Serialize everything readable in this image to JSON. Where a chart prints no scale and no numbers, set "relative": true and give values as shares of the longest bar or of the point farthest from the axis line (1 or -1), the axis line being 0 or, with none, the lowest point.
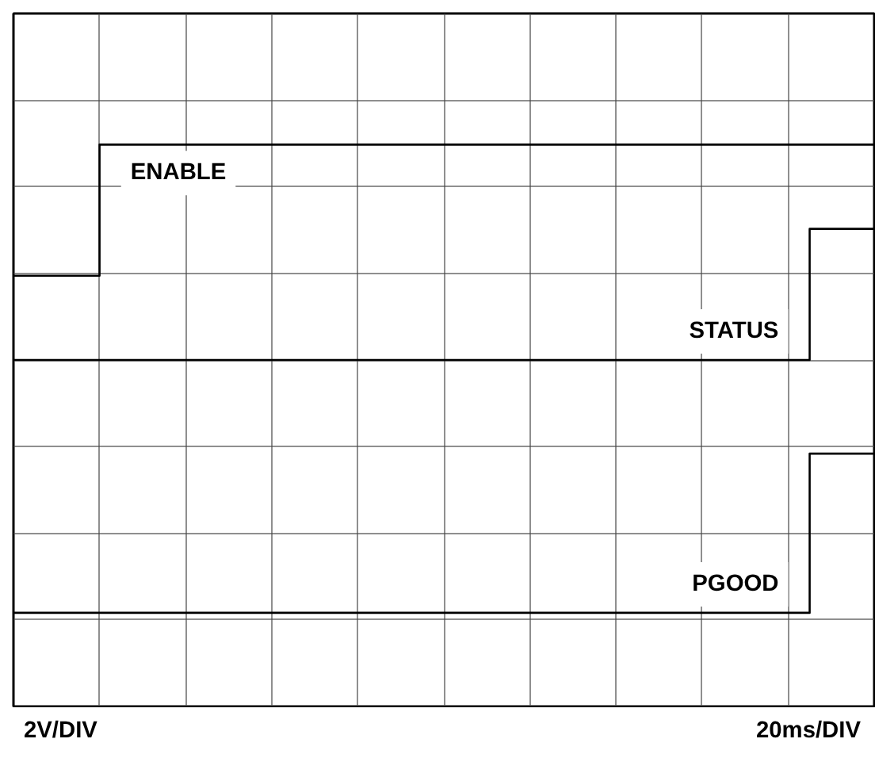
{
  "chart_data": {
    "type": "step",
    "relative": true,
    "grid": true,
    "marker": "none",
    "line_style": "solid",
    "categories": [
      null,
      null,
      null,
      null,
      null,
      null,
      null,
      null,
      null,
      null,
      null,
      null,
      null,
      null,
      null,
      null,
      null,
      null,
      null,
      null,
      null,
      null,
      null,
      null,
      null,
      null,
      null,
      null,
      null,
      null,
      null,
      null,
      null,
      null,
      null,
      null,
      null,
      null,
      null,
      null,
      null
    ],
    "series": [
      {
        "name": "ENABLE",
        "color": "#000000",
        "values": [
          0.72,
          0.72,
          0.72,
          0.72,
          1,
          1,
          1,
          1,
          1,
          1,
          1,
          1,
          1,
          1,
          1,
          1,
          1,
          1,
          1,
          1,
          1,
          1,
          1,
          1,
          1,
          1,
          1,
          1,
          1,
          1,
          1,
          1,
          1,
          1,
          1,
          1,
          1,
          1,
          1,
          1,
          1
        ]
      },
      {
        "name": "STATUS",
        "color": "#000000",
        "values": [
          0.54,
          0.54,
          0.54,
          0.54,
          0.54,
          0.54,
          0.54,
          0.54,
          0.54,
          0.54,
          0.54,
          0.54,
          0.54,
          0.54,
          0.54,
          0.54,
          0.54,
          0.54,
          0.54,
          0.54,
          0.54,
          0.54,
          0.54,
          0.54,
          0.54,
          0.54,
          0.54,
          0.54,
          0.54,
          0.54,
          0.54,
          0.54,
          0.54,
          0.54,
          0.54,
          0.54,
          0.54,
          0.82,
          0.82,
          0.82,
          0.82
        ]
      },
      {
        "name": "PGOOD",
        "color": "#000000",
        "values": [
          0,
          0,
          0,
          0,
          0,
          0,
          0,
          0,
          0,
          0,
          0,
          0,
          0,
          0,
          0,
          0,
          0,
          0,
          0,
          0,
          0,
          0,
          0,
          0,
          0,
          0,
          0,
          0,
          0,
          0,
          0,
          0,
          0,
          0,
          0,
          0,
          0,
          0.34,
          0.34,
          0.34,
          0.34
        ]
      }
    ],
    "annotations": [
      "2V/DIV",
      "20ms/DIV"
    ]
  }
}
